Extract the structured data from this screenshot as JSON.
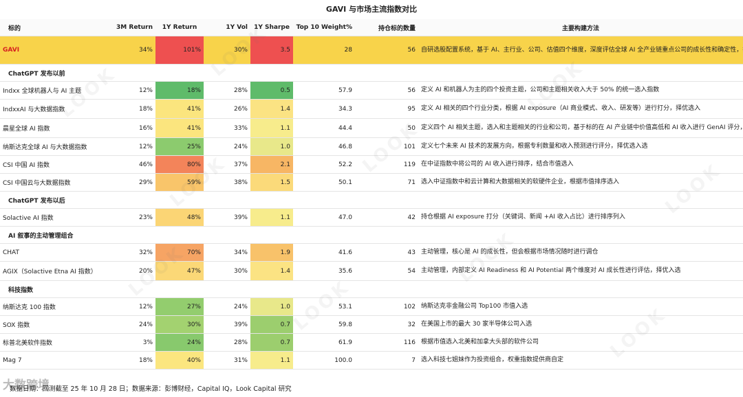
{
  "title": "GAVI 与市场主流指数对比",
  "headers": [
    "标的",
    "3M Return",
    "1Y Return",
    "1Y Vol",
    "1Y Sharpe",
    "Top 10 Weight%",
    "持仓标的数量",
    "主要构建方法"
  ],
  "gavi": {
    "name": "GAVI",
    "m3": "34%",
    "y1": "101%",
    "vol": "30%",
    "sharpe": "3.5",
    "top10": "28",
    "count": "56",
    "desc": "自研选股配置系统，基于 AI、主行业、公司、估值四个维度，深度评估全球 AI 全产业链重点公司的成长性和确定性，择优选入，结合估值分配权重",
    "y1_color": "#ee5050",
    "sharpe_color": "#ee5050"
  },
  "sections": [
    {
      "label": "ChatGPT 发布以前",
      "rows": [
        {
          "name": "Indxx 全球机器人与 AI 主题",
          "m3": "12%",
          "y1": "18%",
          "vol": "28%",
          "sharpe": "0.5",
          "top10": "57.9",
          "count": "56",
          "desc": "定义 AI 和机器人为主的四个投资主题，公司和主题相关收入大于 50% 的统一选入指数",
          "y1_color": "#5fbb6a",
          "sharpe_color": "#5fbb6a"
        },
        {
          "name": "IndxxAI 与大数据指数",
          "m3": "18%",
          "y1": "41%",
          "vol": "26%",
          "sharpe": "1.4",
          "top10": "34.3",
          "count": "95",
          "desc": "定义 AI 相关的四个行业分类，根据 AI exposure（AI 商业模式、收入、研发等）进行打分，择优选入",
          "y1_color": "#fbe57e",
          "sharpe_color": "#fbe383"
        },
        {
          "name": "晨星全球 AI 指数",
          "m3": "16%",
          "y1": "41%",
          "vol": "33%",
          "sharpe": "1.1",
          "top10": "44.4",
          "count": "50",
          "desc": "定义四个 AI 相关主题，选入和主题相关的行业和公司，基于标的在 AI 产业链中价值高低和 AI 收入进行 GenAI 评分，择优选入",
          "y1_color": "#fbe57e",
          "sharpe_color": "#f7ec8c"
        },
        {
          "name": "纳斯达克全球 AI 与大数据指数",
          "m3": "12%",
          "y1": "25%",
          "vol": "24%",
          "sharpe": "1.0",
          "top10": "46.8",
          "count": "101",
          "desc": "定义七个未来 AI 技术的发展方向，根据专利数量和收入预测进行评分，择优选入选",
          "y1_color": "#8ccb6e",
          "sharpe_color": "#e8e88a"
        },
        {
          "name": "CSI 中国 AI 指数",
          "m3": "46%",
          "y1": "80%",
          "vol": "37%",
          "sharpe": "2.1",
          "top10": "52.2",
          "count": "119",
          "desc": "在中证指数中将公司的 AI 收入进行排序，结合市值选入",
          "y1_color": "#f3845a",
          "sharpe_color": "#f7b664"
        },
        {
          "name": "CSI 中国云与大数据指数",
          "m3": "29%",
          "y1": "59%",
          "vol": "38%",
          "sharpe": "1.5",
          "top10": "50.1",
          "count": "71",
          "desc": "选入中证指数中和云计算和大数据相关的软硬件企业，根据市值排序选入",
          "y1_color": "#f9c56a",
          "sharpe_color": "#fbda7a"
        }
      ]
    },
    {
      "label": "ChatGPT 发布以后",
      "rows": [
        {
          "name": "Solactive AI 指数",
          "m3": "23%",
          "y1": "48%",
          "vol": "39%",
          "sharpe": "1.1",
          "top10": "47.0",
          "count": "42",
          "desc": "持仓根据 AI exposure 打分（关键词、新闻 +AI 收入占比）进行排序列入",
          "y1_color": "#fbd575",
          "sharpe_color": "#f7ec8c"
        }
      ]
    },
    {
      "label": "AI 叙事的主动管理组合",
      "rows": [
        {
          "name": "CHAT",
          "m3": "32%",
          "y1": "70%",
          "vol": "34%",
          "sharpe": "1.9",
          "top10": "41.6",
          "count": "43",
          "desc": "主动管理，核心是 AI 的成长性，但会根据市场情况随时进行调仓",
          "y1_color": "#f6a464",
          "sharpe_color": "#f8c26a"
        },
        {
          "name": "AGIX（Solactive Etna AI 指数）",
          "m3": "20%",
          "y1": "47%",
          "vol": "30%",
          "sharpe": "1.4",
          "top10": "35.6",
          "count": "54",
          "desc": "主动管理，内部定义 AI Readiness 和 AI Potential 两个维度对 AI 成长性进行评估，择优入选",
          "y1_color": "#fbd877",
          "sharpe_color": "#fbe383"
        }
      ]
    },
    {
      "label": "科技指数",
      "rows": [
        {
          "name": "纳斯达克 100 指数",
          "m3": "12%",
          "y1": "27%",
          "vol": "24%",
          "sharpe": "1.0",
          "top10": "53.1",
          "count": "102",
          "desc": "纳斯达克非金融公司 Top100 市值入选",
          "y1_color": "#93cd6e",
          "sharpe_color": "#e8e88a"
        },
        {
          "name": "SOX 指数",
          "m3": "24%",
          "y1": "30%",
          "vol": "39%",
          "sharpe": "0.7",
          "top10": "59.8",
          "count": "32",
          "desc": "在美国上市的最大 30 家半导体公司入选",
          "y1_color": "#a3d270",
          "sharpe_color": "#9cce6e"
        },
        {
          "name": "标普北美软件指数",
          "m3": "3%",
          "y1": "24%",
          "vol": "28%",
          "sharpe": "0.7",
          "top10": "61.9",
          "count": "116",
          "desc": "根据市值选入北美和加拿大头部的软件公司",
          "y1_color": "#88c96d",
          "sharpe_color": "#9cce6e"
        },
        {
          "name": "Mag 7",
          "m3": "18%",
          "y1": "40%",
          "vol": "31%",
          "sharpe": "1.1",
          "top10": "100.0",
          "count": "7",
          "desc": "选入科技七姐妹作为投资组合，权重指数提供商自定",
          "y1_color": "#fbe67f",
          "sharpe_color": "#f7ec8c"
        }
      ]
    }
  ],
  "footnote": "数据日期：回测截至 25 年 10 月 28 日；数据来源：彭博财经，Capital IQ，Look Capital 研究",
  "logo_text": "大数跨境",
  "watermark_text": "LOOK"
}
